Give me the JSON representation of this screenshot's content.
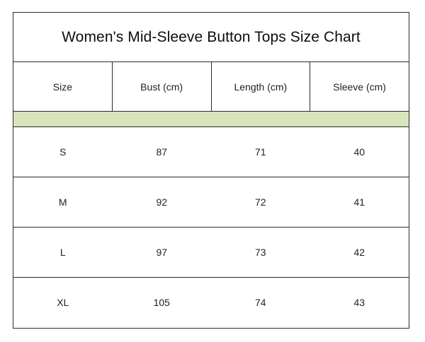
{
  "title": "Women's Mid-Sleeve Button Tops Size Chart",
  "colors": {
    "band": "#d8e4bc",
    "border": "#2a2a2a"
  },
  "columns": [
    "Size",
    "Bust (cm)",
    "Length (cm)",
    "Sleeve (cm)"
  ],
  "rows": [
    [
      "S",
      "87",
      "71",
      "40"
    ],
    [
      "M",
      "92",
      "72",
      "41"
    ],
    [
      "L",
      "97",
      "73",
      "42"
    ],
    [
      "XL",
      "105",
      "74",
      "43"
    ]
  ]
}
